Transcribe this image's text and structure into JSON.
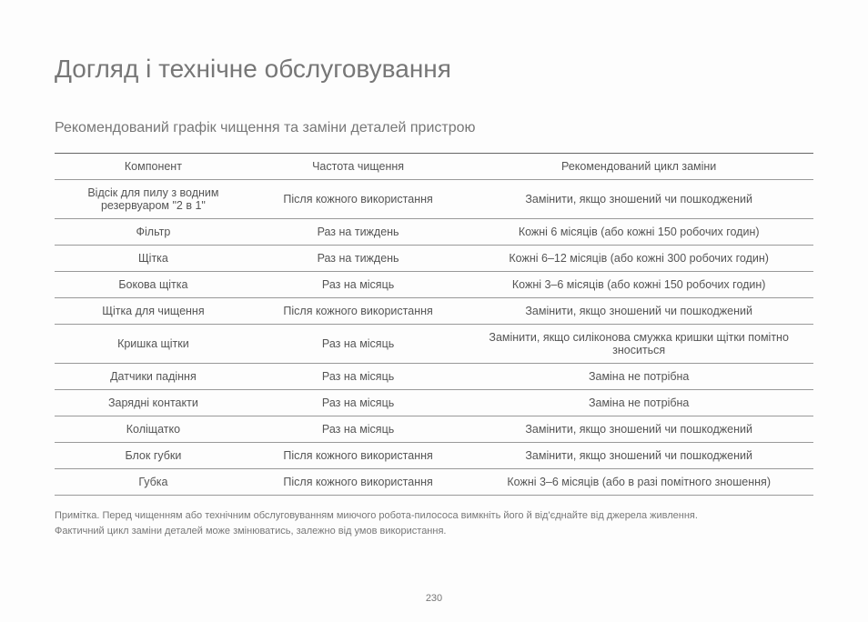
{
  "title": "Догляд і технічне обслуговування",
  "subtitle": "Рекомендований графік чищення та заміни деталей пристрою",
  "table": {
    "headers": [
      "Компонент",
      "Частота чищення",
      "Рекомендований цикл заміни"
    ],
    "rows": [
      [
        "Відсік для пилу з водним резервуаром \"2 в 1\"",
        "Після кожного використання",
        "Замінити, якщо зношений чи пошкоджений"
      ],
      [
        "Фільтр",
        "Раз на тиждень",
        "Кожні 6 місяців (або кожні 150 робочих годин)"
      ],
      [
        "Щітка",
        "Раз на тиждень",
        "Кожні 6–12 місяців (або кожні 300 робочих годин)"
      ],
      [
        "Бокова щітка",
        "Раз на місяць",
        "Кожні 3–6 місяців (або кожні 150 робочих годин)"
      ],
      [
        "Щітка для чищення",
        "Після кожного використання",
        "Замінити, якщо зношений чи пошкоджений"
      ],
      [
        "Кришка щітки",
        "Раз на місяць",
        "Замінити, якщо силіконова смужка кришки щітки помітно зноситься"
      ],
      [
        "Датчики падіння",
        "Раз на місяць",
        "Заміна не потрібна"
      ],
      [
        "Зарядні контакти",
        "Раз на місяць",
        "Заміна не потрібна"
      ],
      [
        "Коліщатко",
        "Раз на місяць",
        "Замінити, якщо зношений чи пошкоджений"
      ],
      [
        "Блок губки",
        "Після кожного використання",
        "Замінити, якщо зношений чи пошкоджений"
      ],
      [
        "Губка",
        "Після кожного використання",
        "Кожні 3–6 місяців (або в разі помітного зношення)"
      ]
    ]
  },
  "note_line1": "Примітка. Перед чищенням або технічним обслуговуванням миючого робота-пилососа вимкніть його й від'єднайте від джерела живлення.",
  "note_line2": "Фактичний цикл заміни деталей може змінюватись, залежно від умов використання.",
  "pagenum": "230"
}
